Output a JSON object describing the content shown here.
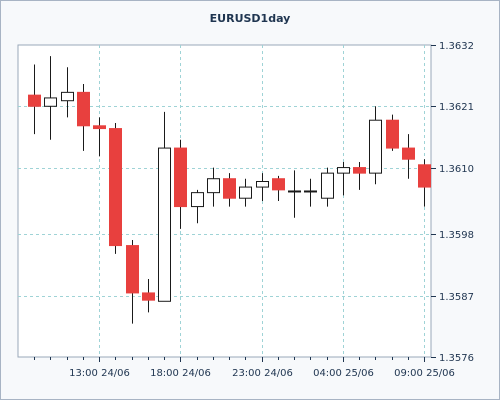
{
  "chart_data": {
    "type": "candlestick",
    "title": "EURUSD1day",
    "y_ticks": [
      "1.3632",
      "1.3621",
      "1.3610",
      "1.3598",
      "1.3587",
      "1.3576"
    ],
    "y_tick_values": [
      1.3632,
      1.3621,
      1.361,
      1.3598,
      1.3587,
      1.3576
    ],
    "ylim": [
      1.3576,
      1.3632
    ],
    "x_ticks": [
      "13:00 24/06",
      "18:00 24/06",
      "23:00 24/06",
      "04:00 25/06",
      "09:00 25/06"
    ],
    "x_tick_index": [
      4,
      9,
      14,
      19,
      24
    ],
    "grid": true,
    "up_color": "#ffffff",
    "down_color": "#e8403e",
    "candles": [
      {
        "o": 1.3623,
        "h": 1.36285,
        "l": 1.3616,
        "c": 1.3621
      },
      {
        "o": 1.3621,
        "h": 1.363,
        "l": 1.3615,
        "c": 1.36225
      },
      {
        "o": 1.3622,
        "h": 1.3628,
        "l": 1.3619,
        "c": 1.36235
      },
      {
        "o": 1.36235,
        "h": 1.3625,
        "l": 1.3613,
        "c": 1.36175
      },
      {
        "o": 1.36175,
        "h": 1.3619,
        "l": 1.3612,
        "c": 1.3617
      },
      {
        "o": 1.3617,
        "h": 1.3618,
        "l": 1.35945,
        "c": 1.3596
      },
      {
        "o": 1.3596,
        "h": 1.3597,
        "l": 1.3582,
        "c": 1.35875
      },
      {
        "o": 1.35875,
        "h": 1.359,
        "l": 1.3584,
        "c": 1.35862
      },
      {
        "o": 1.3586,
        "h": 1.362,
        "l": 1.3586,
        "c": 1.36135
      },
      {
        "o": 1.36135,
        "h": 1.3615,
        "l": 1.3599,
        "c": 1.3603
      },
      {
        "o": 1.3603,
        "h": 1.3606,
        "l": 1.36,
        "c": 1.36055
      },
      {
        "o": 1.36055,
        "h": 1.361,
        "l": 1.3603,
        "c": 1.3608
      },
      {
        "o": 1.3608,
        "h": 1.3609,
        "l": 1.3603,
        "c": 1.36045
      },
      {
        "o": 1.36045,
        "h": 1.3608,
        "l": 1.3603,
        "c": 1.36065
      },
      {
        "o": 1.36065,
        "h": 1.3609,
        "l": 1.3604,
        "c": 1.36075
      },
      {
        "o": 1.3608,
        "h": 1.36085,
        "l": 1.3604,
        "c": 1.3606
      },
      {
        "o": 1.36058,
        "h": 1.36095,
        "l": 1.3601,
        "c": 1.36058
      },
      {
        "o": 1.36058,
        "h": 1.3608,
        "l": 1.3603,
        "c": 1.36058
      },
      {
        "o": 1.36045,
        "h": 1.361,
        "l": 1.3603,
        "c": 1.3609
      },
      {
        "o": 1.3609,
        "h": 1.3611,
        "l": 1.3605,
        "c": 1.361
      },
      {
        "o": 1.361,
        "h": 1.3611,
        "l": 1.3606,
        "c": 1.3609
      },
      {
        "o": 1.3609,
        "h": 1.3621,
        "l": 1.3607,
        "c": 1.36185
      },
      {
        "o": 1.36185,
        "h": 1.36195,
        "l": 1.3613,
        "c": 1.36135
      },
      {
        "o": 1.36135,
        "h": 1.3616,
        "l": 1.3608,
        "c": 1.36115
      },
      {
        "o": 1.36105,
        "h": 1.36115,
        "l": 1.3603,
        "c": 1.36065
      }
    ]
  }
}
